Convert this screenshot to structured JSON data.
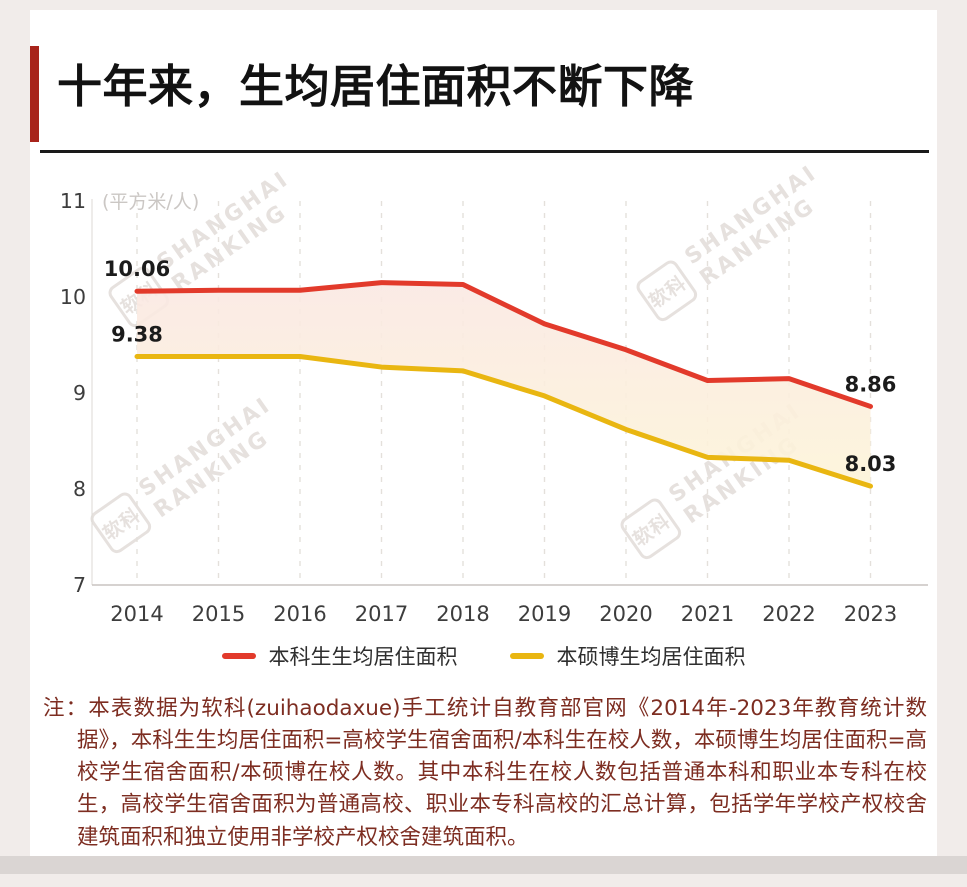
{
  "page": {
    "title": "十年来，生均居住面积不断下降",
    "note_prefix": "注：",
    "note_text": "本表数据为软科(zuihaodaxue)手工统计自教育部官网《2014年-2023年教育统计数据》，本科生生均居住面积=高校学生宿舍面积/本科生在校人数，本硕博生均居住面积=高校学生宿舍面积/本硕博在校人数。其中本科生在校人数包括普通本科和职业本专科在校生，高校学生宿舍面积为普通高校、职业本专科高校的汇总计算，包括学年学校产权校舍建筑面积和独立使用非学校产权校舍建筑面积。",
    "colors": {
      "accent_red": "#a8241b",
      "line_red": "#e23a2b",
      "line_yellow": "#e9b611",
      "note_text": "#7d2d21",
      "page_background": "#f1ecea",
      "card_background": "#ffffff"
    }
  },
  "watermark": {
    "logo_text": "软科",
    "line1": "SHANGHAI",
    "line2": "RANKING"
  },
  "chart_data": {
    "type": "line",
    "title": "十年来，生均居住面积不断下降",
    "unit_label": "(平方米/人)",
    "xlabel": "",
    "ylabel": "",
    "categories": [
      "2014",
      "2015",
      "2016",
      "2017",
      "2018",
      "2019",
      "2020",
      "2021",
      "2022",
      "2023"
    ],
    "series": [
      {
        "name": "本科生生均居住面积",
        "color": "#e23a2b",
        "values": [
          10.06,
          10.07,
          10.07,
          10.15,
          10.13,
          9.72,
          9.45,
          9.13,
          9.15,
          8.86
        ]
      },
      {
        "name": "本硕博生均居住面积",
        "color": "#e9b611",
        "values": [
          9.38,
          9.38,
          9.38,
          9.27,
          9.23,
          8.97,
          8.62,
          8.33,
          8.3,
          8.03
        ]
      }
    ],
    "ylim": [
      7,
      11
    ],
    "yticks": [
      11,
      10,
      9,
      8,
      7
    ],
    "grid": "vertical-dashed",
    "legend_position": "bottom",
    "band_fill_top": "#fae8e3",
    "band_fill_bottom": "#fdf4d8",
    "annotations": [
      {
        "series": 0,
        "index": 0,
        "label": "10.06"
      },
      {
        "series": 1,
        "index": 0,
        "label": "9.38"
      },
      {
        "series": 0,
        "index": 9,
        "label": "8.86"
      },
      {
        "series": 1,
        "index": 9,
        "label": "8.03"
      }
    ]
  }
}
